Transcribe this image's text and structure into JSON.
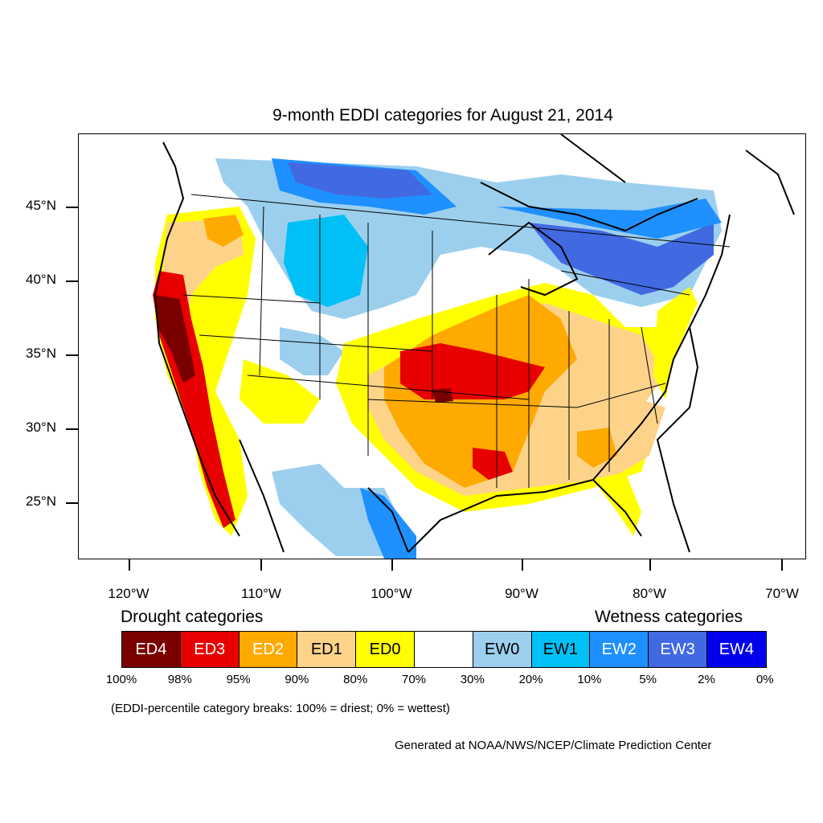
{
  "title": "9-month EDDI categories for August 21, 2014",
  "axes": {
    "lat_labels": [
      "45°N",
      "40°N",
      "35°N",
      "30°N",
      "25°N"
    ],
    "lon_labels": [
      "120°W",
      "110°W",
      "100°W",
      "90°W",
      "80°W",
      "70°W"
    ]
  },
  "legend": {
    "drought_heading": "Drought categories",
    "wetness_heading": "Wetness categories",
    "categories": [
      {
        "label": "ED4",
        "color": "#7a0000",
        "text_color": "#ffffff"
      },
      {
        "label": "ED3",
        "color": "#e80000",
        "text_color": "#ffffff"
      },
      {
        "label": "ED2",
        "color": "#ffaa00",
        "text_color": "#ffffff"
      },
      {
        "label": "ED1",
        "color": "#fdd38a",
        "text_color": "#000000"
      },
      {
        "label": "ED0",
        "color": "#ffff00",
        "text_color": "#000000"
      },
      {
        "label": "",
        "color": "#ffffff",
        "text_color": "#000000"
      },
      {
        "label": "EW0",
        "color": "#9ccfee",
        "text_color": "#000000"
      },
      {
        "label": "EW1",
        "color": "#00c0f5",
        "text_color": "#000000"
      },
      {
        "label": "EW2",
        "color": "#1e90ff",
        "text_color": "#ffffff"
      },
      {
        "label": "EW3",
        "color": "#4169e1",
        "text_color": "#ffffff"
      },
      {
        "label": "EW4",
        "color": "#0000ee",
        "text_color": "#ffffff"
      }
    ],
    "breaks": [
      "100%",
      "98%",
      "95%",
      "90%",
      "80%",
      "70%",
      "30%",
      "20%",
      "10%",
      "5%",
      "2%",
      "0%"
    ]
  },
  "note": "(EDDI-percentile category breaks: 100% = driest; 0% = wettest)",
  "credit": "Generated at NOAA/NWS/NCEP/Climate Prediction Center"
}
